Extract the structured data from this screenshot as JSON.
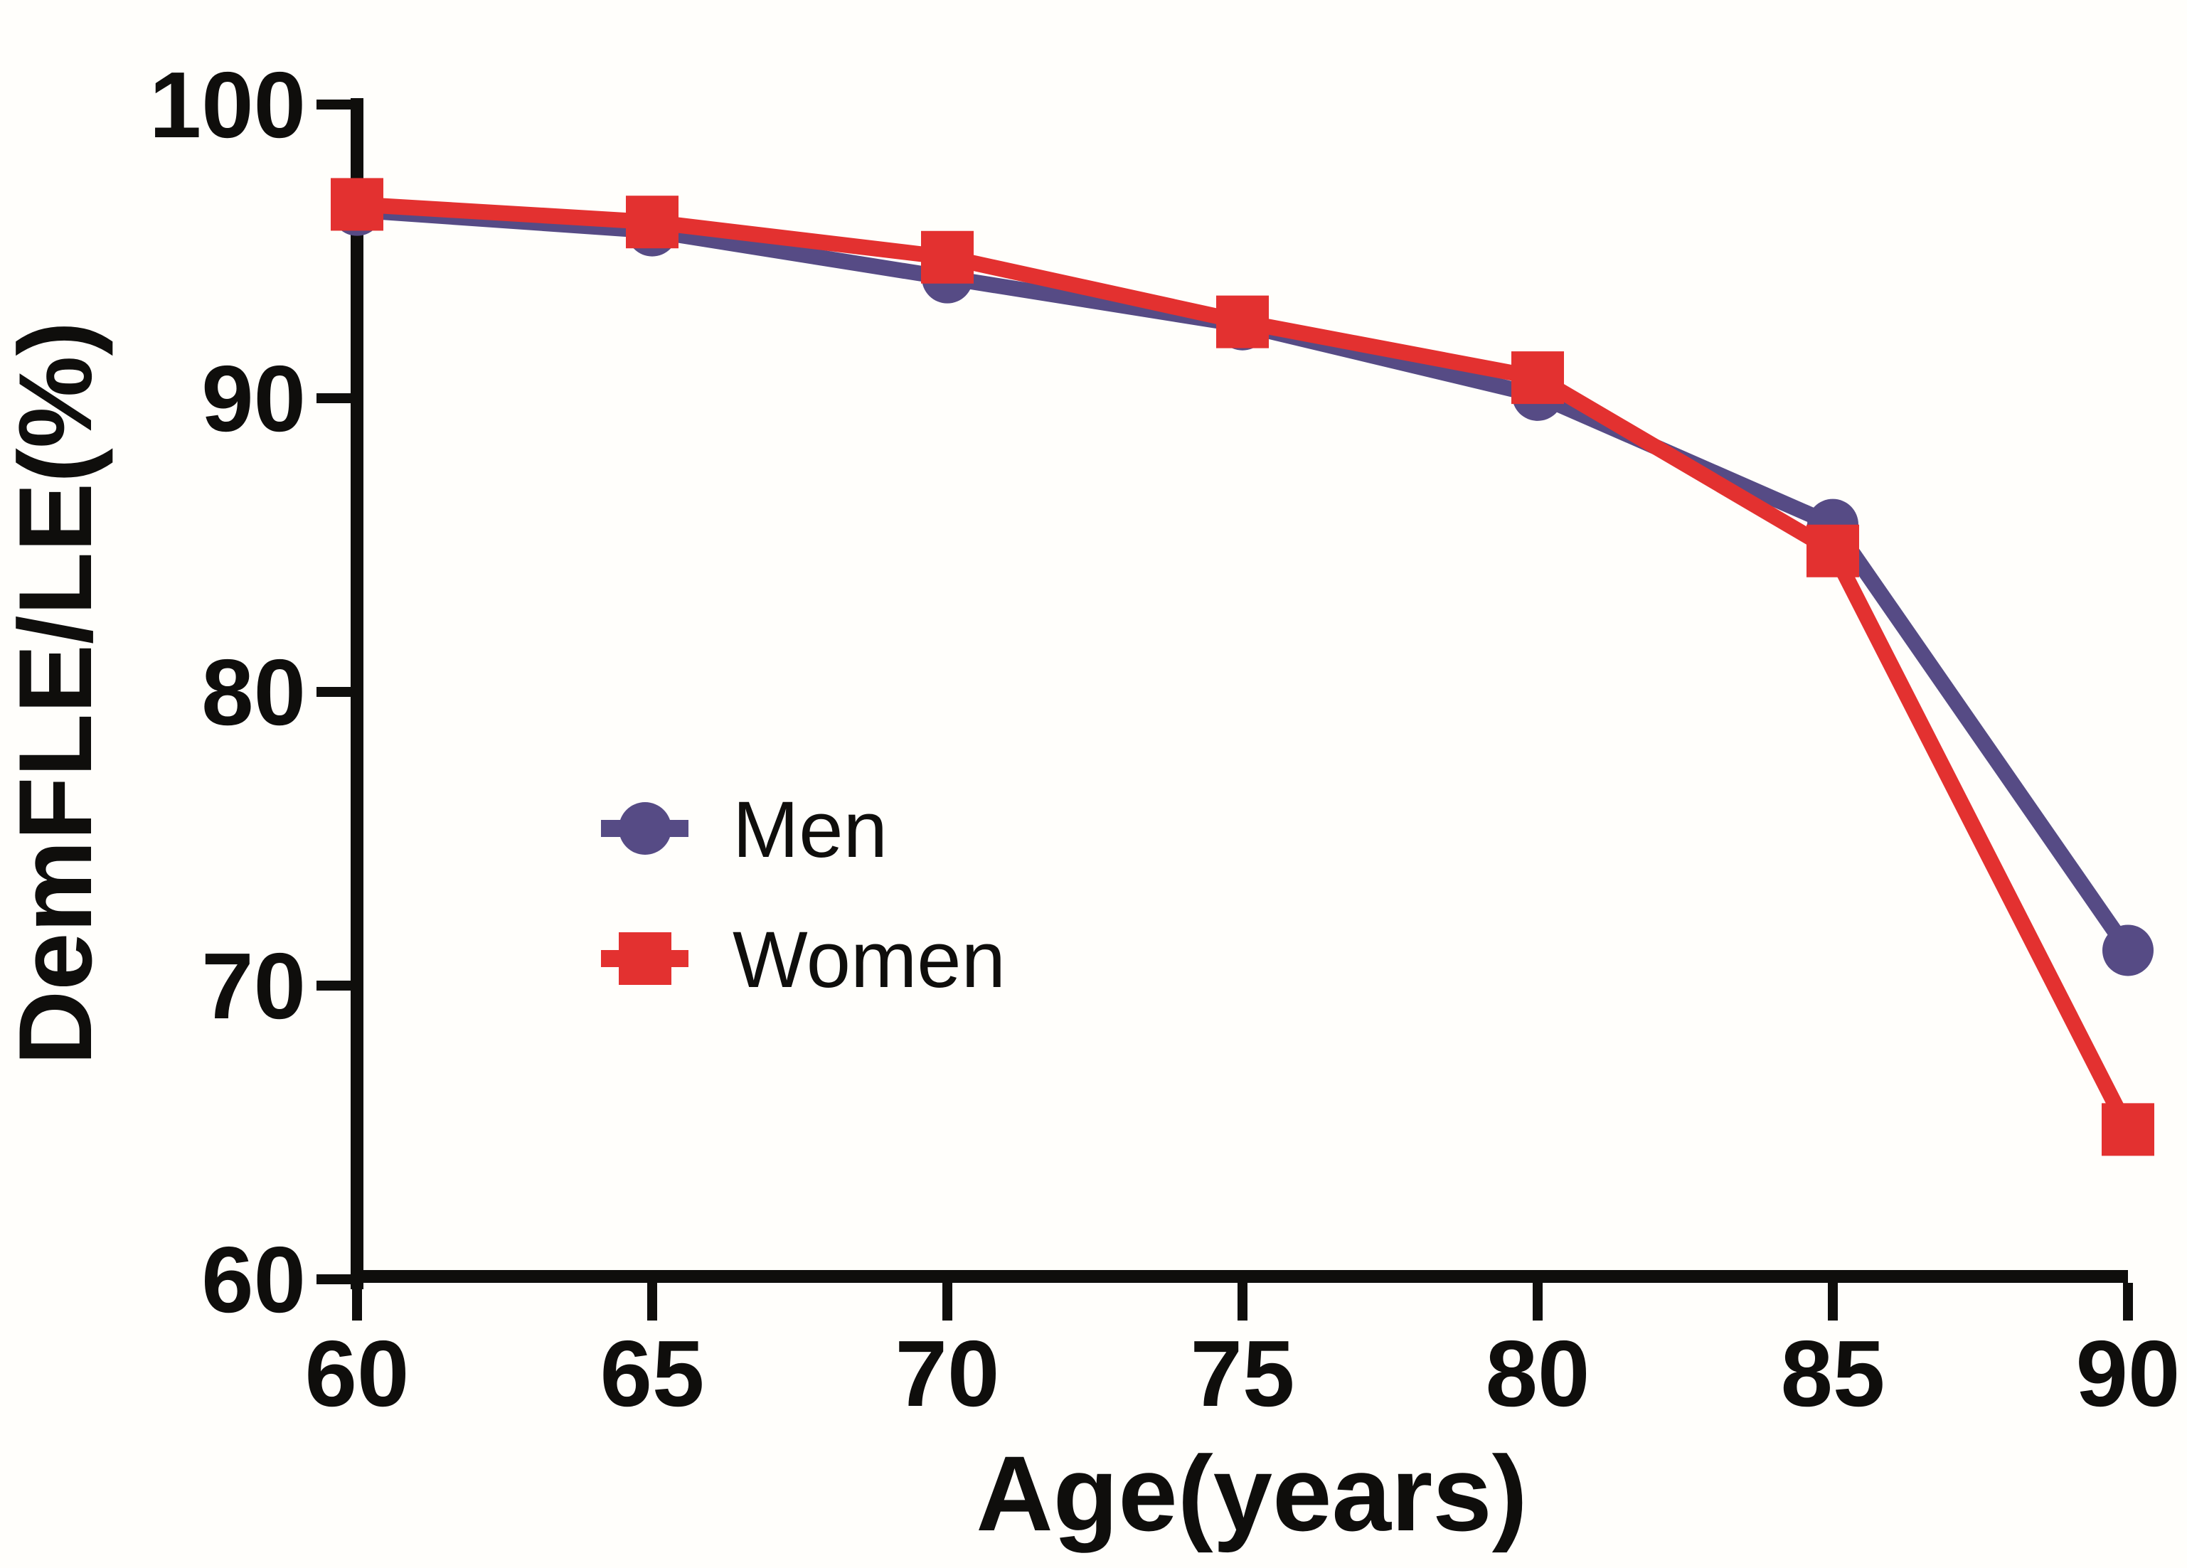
{
  "chart_data": {
    "type": "line",
    "title": "",
    "xlabel": "Age(years)",
    "ylabel": "DemFLE/LE(%)",
    "x": [
      60,
      65,
      70,
      75,
      80,
      85,
      90
    ],
    "x_ticks": [
      60,
      65,
      70,
      75,
      80,
      85,
      90
    ],
    "y_ticks": [
      100,
      90,
      80,
      70,
      60
    ],
    "xlim": [
      60,
      90
    ],
    "ylim": [
      60,
      100
    ],
    "grid": false,
    "legend_position": "inside-center-left",
    "series": [
      {
        "name": "Men",
        "marker": "circle",
        "color": "#564B85",
        "values": [
          96.4,
          95.7,
          94.1,
          92.5,
          90.1,
          85.7,
          71.2
        ]
      },
      {
        "name": "Women",
        "marker": "square",
        "color": "#E33130",
        "values": [
          96.6,
          96.0,
          94.8,
          92.6,
          90.7,
          84.8,
          65.1
        ]
      }
    ]
  },
  "colors": {
    "axis": "#0f0e0c",
    "men": "#564B85",
    "women": "#E33130",
    "background": "#fffefb"
  }
}
